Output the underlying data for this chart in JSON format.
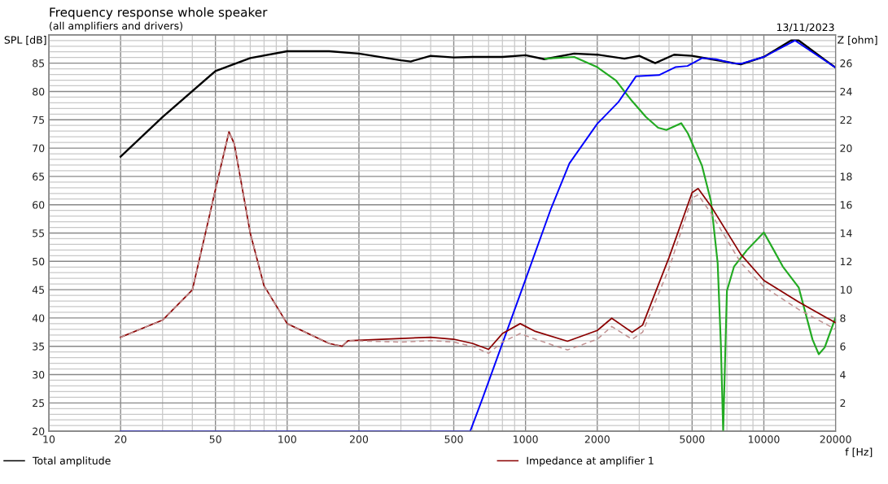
{
  "chart_data": {
    "type": "line",
    "title": "Frequency response whole speaker",
    "subtitle": "(all amplifiers and drivers)",
    "xlabel": "f [Hz]",
    "ylabel": "SPL [dB]",
    "y2label": "Z [ohm]",
    "annotations": [
      "13/11/2023"
    ],
    "log": "x",
    "grid": true,
    "legend": "bottom",
    "line_style": "solid",
    "marker": "none",
    "xlim": [
      10,
      20000
    ],
    "xticks": [
      10,
      20,
      50,
      100,
      200,
      500,
      1000,
      2000,
      5000,
      10000,
      20000
    ],
    "ylim": [
      20,
      90
    ],
    "yticks": [
      20,
      25,
      30,
      35,
      40,
      45,
      50,
      55,
      60,
      65,
      70,
      75,
      80,
      85
    ],
    "y2lim": [
      0,
      28
    ],
    "y2ticks": [
      2,
      4,
      6,
      8,
      10,
      12,
      14,
      16,
      18,
      20,
      22,
      24,
      26
    ],
    "series": [
      {
        "name": "Total amplitude",
        "color": "#000000",
        "x": [
          20,
          30,
          50,
          70,
          100,
          150,
          200,
          300,
          330,
          400,
          500,
          600,
          800,
          1000,
          1200,
          1600,
          2000,
          2600,
          3000,
          3500,
          4200,
          5000,
          6000,
          8000,
          10000,
          13000,
          14000,
          20000
        ],
        "values": [
          68.5,
          75.5,
          83.6,
          85.9,
          87.1,
          87.1,
          86.7,
          85.5,
          85.3,
          86.3,
          86.0,
          86.1,
          86.1,
          86.4,
          85.7,
          86.7,
          86.5,
          85.8,
          86.3,
          85.0,
          86.5,
          86.3,
          85.7,
          84.8,
          86.1,
          89.0,
          89.0,
          84.2
        ]
      },
      {
        "color": "#22aa22",
        "x": [
          1210,
          1600,
          2000,
          2400,
          2800,
          3200,
          3600,
          3900,
          4500,
          4800,
          5500,
          6000,
          6400,
          6600,
          6750,
          7000,
          7500,
          8500,
          10000,
          11000,
          12000,
          14000,
          16000,
          17000,
          18000,
          20000
        ],
        "values": [
          85.8,
          86.1,
          84.3,
          81.9,
          78.3,
          75.5,
          73.6,
          73.2,
          74.4,
          72.6,
          66.9,
          60.6,
          49.7,
          35.4,
          20.0,
          44.8,
          49.1,
          52.0,
          55.1,
          52.0,
          49.1,
          45.4,
          36.2,
          33.6,
          34.8,
          40.1
        ]
      },
      {
        "color": "#0000ff",
        "x": [
          20,
          586,
          659,
          1000,
          1276,
          1528,
          2000,
          2450,
          2911,
          3630,
          4250,
          4780,
          5510,
          6300,
          7370,
          8000,
          10000,
          13500,
          20000
        ],
        "values": [
          20,
          20,
          25.7,
          46.8,
          59.2,
          67.3,
          74.3,
          78.1,
          82.7,
          82.9,
          84.3,
          84.5,
          85.9,
          85.7,
          85.0,
          84.9,
          86.1,
          89.0,
          84.2
        ]
      },
      {
        "name": "Impedance at amplifier 1",
        "color": "#8b0000",
        "axis": "y2",
        "x": [
          20,
          30,
          40,
          50,
          57,
          60,
          70,
          80,
          100,
          150,
          170,
          180,
          300,
          400,
          500,
          600,
          700,
          800,
          950,
          1100,
          1500,
          2000,
          2300,
          2800,
          3100,
          4000,
          5000,
          5300,
          6000,
          8000,
          10000,
          14000,
          20000
        ],
        "values": [
          6.64,
          7.85,
          9.98,
          17.07,
          21.15,
          20.3,
          13.99,
          10.27,
          7.6,
          6.2,
          6.01,
          6.4,
          6.55,
          6.64,
          6.5,
          6.2,
          5.78,
          6.9,
          7.6,
          7.05,
          6.36,
          7.12,
          7.98,
          6.99,
          7.5,
          12.27,
          16.86,
          17.14,
          15.9,
          12.5,
          10.65,
          9.13,
          7.66
        ]
      },
      {
        "color": "#c09090",
        "axis": "y2",
        "line_style": "dashed",
        "x": [
          20,
          30,
          40,
          50,
          57,
          60,
          70,
          80,
          100,
          150,
          170,
          180,
          300,
          400,
          500,
          600,
          700,
          800,
          950,
          1100,
          1500,
          2000,
          2300,
          2800,
          3100,
          4000,
          5000,
          5300,
          6000,
          8000,
          10000,
          14000,
          20000
        ],
        "values": [
          6.64,
          7.85,
          9.98,
          17.07,
          21.15,
          20.3,
          13.99,
          10.27,
          7.6,
          6.2,
          6.01,
          6.4,
          6.3,
          6.4,
          6.3,
          6.0,
          5.5,
          6.3,
          6.9,
          6.5,
          5.74,
          6.5,
          7.4,
          6.5,
          7.0,
          11.5,
          16.48,
          16.7,
          15.4,
          11.9,
          10.2,
          8.6,
          7.2
        ]
      }
    ]
  }
}
